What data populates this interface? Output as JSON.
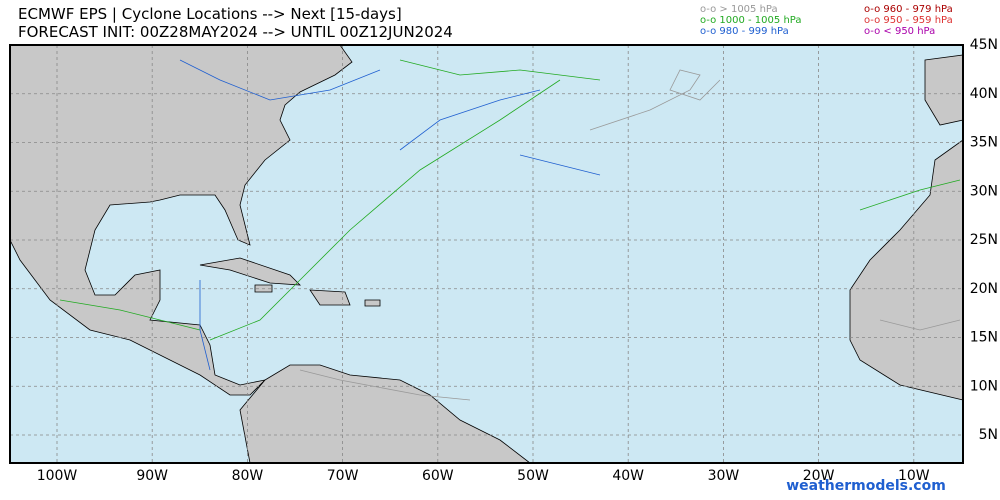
{
  "header": {
    "title_line1": "ECMWF EPS | Cyclone Locations --> Next [15-days]",
    "title_line2": "FORECAST INIT: 00Z28MAY2024 --> UNTIL 00Z12JUN2024"
  },
  "legend": [
    {
      "label": "o-o > 1005 hPa",
      "color": "#999999"
    },
    {
      "label": "o-o 1000 - 1005 hPa",
      "color": "#22aa22"
    },
    {
      "label": "o-o 980 - 999 hPa",
      "color": "#1f5fd0"
    },
    {
      "label": "o-o 960 - 979 hPa",
      "color": "#aa0000"
    },
    {
      "label": "o-o 950 - 959 hPa",
      "color": "#dd3333"
    },
    {
      "label": "o-o < 950 hPa",
      "color": "#aa00aa"
    }
  ],
  "map": {
    "lon_labels": [
      "100W",
      "90W",
      "80W",
      "70W",
      "60W",
      "50W",
      "40W",
      "30W",
      "20W",
      "10W"
    ],
    "lat_labels": [
      "45N",
      "40N",
      "35N",
      "30N",
      "25N",
      "20N",
      "15N",
      "10N",
      "5N"
    ]
  },
  "footer": {
    "watermark": "weathermodels.com"
  }
}
